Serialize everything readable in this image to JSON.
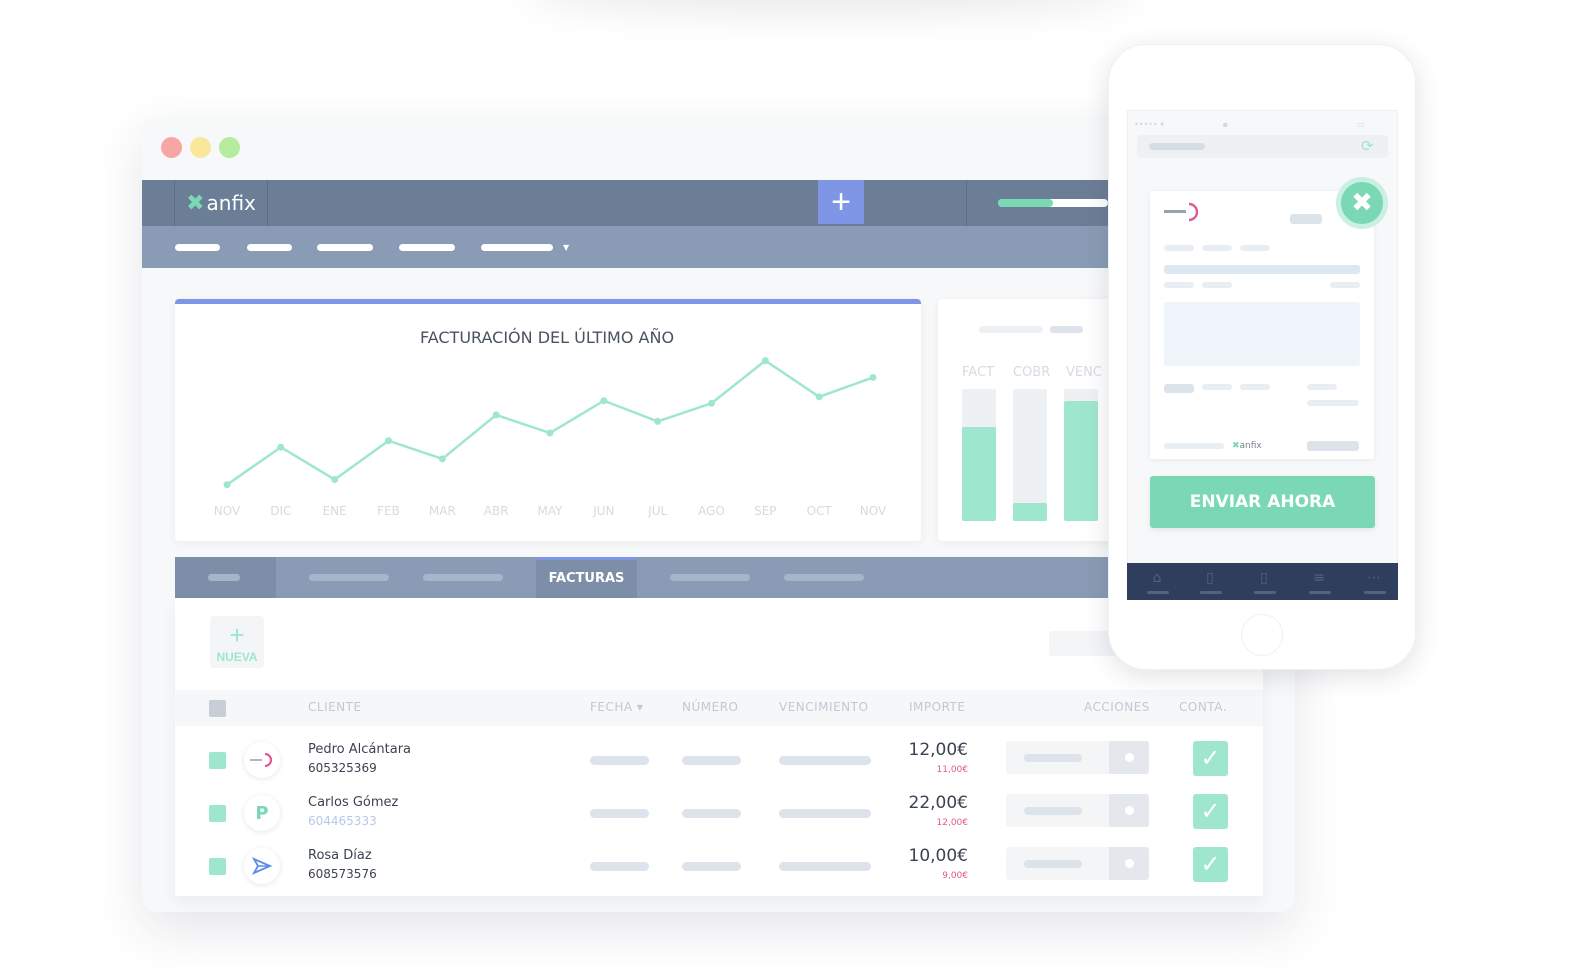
{
  "colors": {
    "accent_green": "#7ad8b4",
    "light_green": "#9fe6cf",
    "accent_blue": "#7f95e6",
    "nav_dark": "#6c7d96",
    "nav_light": "#8a9bb5",
    "pink": "#e05a8f"
  },
  "window_controls": [
    "close-dot",
    "minimize-dot",
    "maximize-dot"
  ],
  "header": {
    "logo_mark": "✖",
    "logo_text": "anfix",
    "add_icon": "plus-icon",
    "progress_fraction": 0.5
  },
  "chart_data": {
    "type": "line",
    "title": "FACTURACIÓN DEL ÚLTIMO AÑO",
    "categories": [
      "NOV",
      "DIC",
      "ENE",
      "FEB",
      "MAR",
      "ABR",
      "MAY",
      "JUN",
      "JUL",
      "AGO",
      "SEP",
      "OCT",
      "NOV"
    ],
    "values": [
      8,
      37,
      12,
      42,
      28,
      62,
      48,
      73,
      57,
      71,
      104,
      76,
      91
    ],
    "ylim": [
      0,
      120
    ],
    "grid": false,
    "series_color": "#9fe6cf"
  },
  "bar_panel": {
    "headers": [
      "FACT",
      "COBR",
      "VENC"
    ],
    "fill_fractions": [
      0.71,
      0.14,
      0.91
    ]
  },
  "tabs": {
    "active_label": "FACTURAS"
  },
  "toolbar": {
    "new_icon": "+",
    "new_label": "NUEVA"
  },
  "table": {
    "columns": {
      "cliente": "CLIENTE",
      "fecha": "FECHA ▾",
      "numero": "NÚMERO",
      "vencimiento": "VENCIMIENTO",
      "importe": "IMPORTE",
      "acciones": "ACCIONES",
      "conta": "CONTA."
    },
    "rows": [
      {
        "name": "Pedro Alcántara",
        "phone": "605325369",
        "amount": "12,00€",
        "sub_amount": "11,00€",
        "avatar": "Meeting-logo",
        "checked": true
      },
      {
        "name": "Carlos Gómez",
        "phone": "604465333",
        "amount": "22,00€",
        "sub_amount": "12,00€",
        "avatar": "P",
        "checked": true
      },
      {
        "name": "Rosa Díaz",
        "phone": "608573576",
        "amount": "10,00€",
        "sub_amount": "9,00€",
        "avatar": "paper-plane-logo",
        "checked": true
      }
    ],
    "check_glyph": "✓"
  },
  "mobile": {
    "close_icon": "✖",
    "send_label": "ENVIAR AHORA",
    "footer_logo": "anfix",
    "nav_icons": [
      "home-icon",
      "document-icon",
      "document-icon",
      "list-icon",
      "more-icon"
    ]
  }
}
